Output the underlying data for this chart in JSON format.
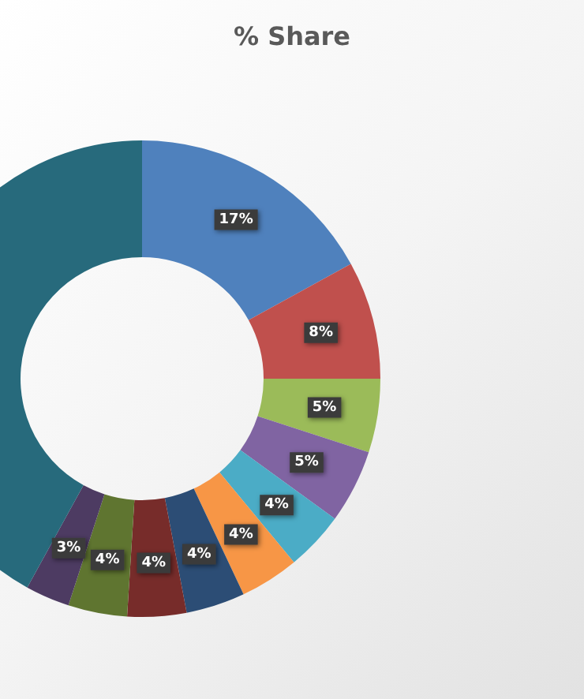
{
  "chart_data": {
    "type": "donut",
    "title": "% Share",
    "categories": [
      null,
      null,
      null,
      null,
      null,
      null,
      null,
      null,
      null,
      null,
      null
    ],
    "values": [
      17,
      8,
      5,
      5,
      4,
      4,
      4,
      4,
      4,
      3,
      42
    ],
    "value_labels": [
      "17%",
      "8%",
      "5%",
      "5%",
      "4%",
      "4%",
      "4%",
      "4%",
      "4%",
      "3%",
      null
    ],
    "colors": [
      "#4f81bd",
      "#c0504d",
      "#9bbb59",
      "#8064a2",
      "#4bacc6",
      "#f79646",
      "#2c4d75",
      "#772c2a",
      "#5f7530",
      "#4d3b62",
      "#276a7c"
    ]
  }
}
